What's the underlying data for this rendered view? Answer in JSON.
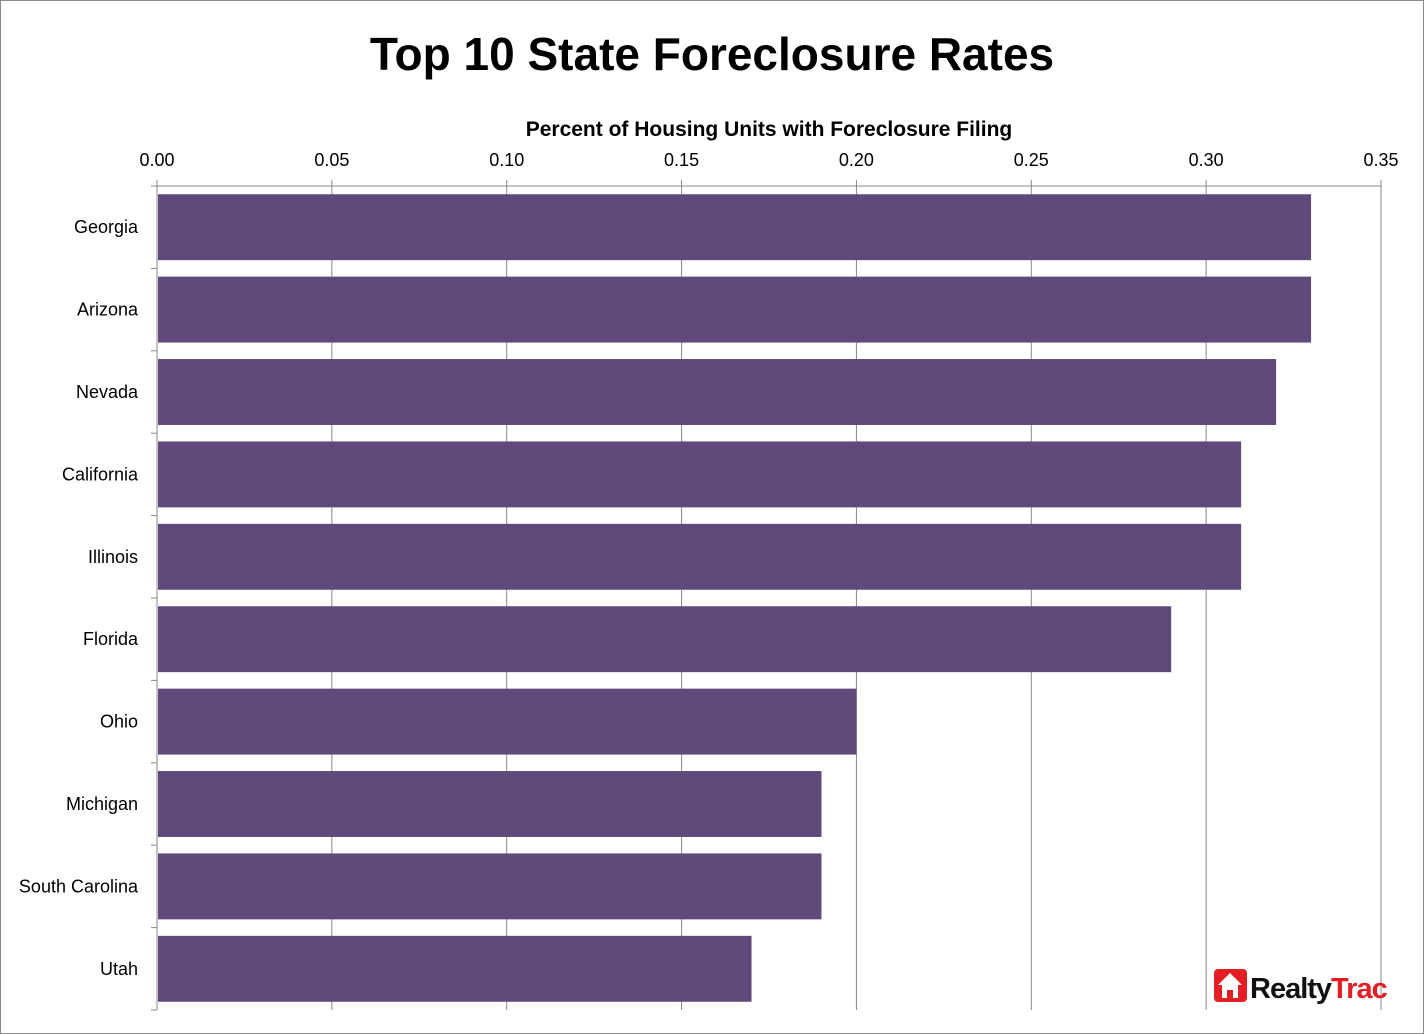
{
  "chart_data": {
    "type": "bar",
    "orientation": "horizontal",
    "title": "Top 10 State Foreclosure Rates",
    "xlabel": "Percent of Housing Units with Foreclosure Filing",
    "ylabel": "",
    "xlim": [
      0,
      0.35
    ],
    "xticks": [
      "0.00",
      "0.05",
      "0.10",
      "0.15",
      "0.20",
      "0.25",
      "0.30",
      "0.35"
    ],
    "x_axis_position": "top",
    "grid": "vertical",
    "categories": [
      "Georgia",
      "Arizona",
      "Nevada",
      "California",
      "Illinois",
      "Florida",
      "Ohio",
      "Michigan",
      "South Carolina",
      "Utah"
    ],
    "values": [
      0.33,
      0.33,
      0.32,
      0.31,
      0.31,
      0.29,
      0.2,
      0.19,
      0.19,
      0.17
    ],
    "bar_color": "#604a7b"
  },
  "logo": {
    "text_a": "Realty",
    "text_b": "Trac",
    "color_red": "#e31e24",
    "icon": "house-icon"
  }
}
